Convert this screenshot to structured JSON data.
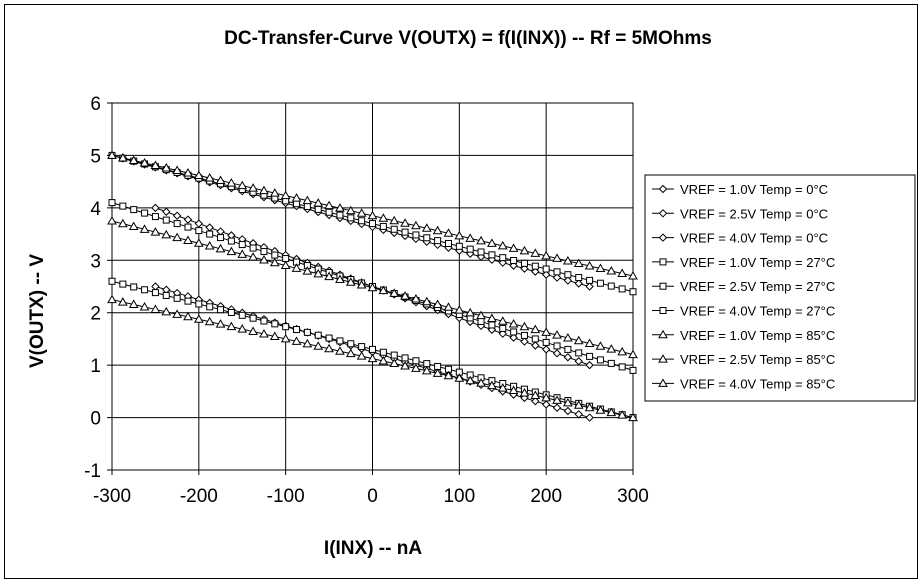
{
  "chart_data": {
    "type": "line",
    "title": "DC-Transfer-Curve V(OUTX) = f(I(INX)) -- Rf = 5MOhms",
    "xlabel": "I(INX) -- nA",
    "ylabel": "V(OUTX) -- V",
    "xlim": [
      -300,
      300
    ],
    "ylim": [
      -1,
      6
    ],
    "xticks": [
      "-300",
      "-200",
      "-100",
      "0",
      "100",
      "200",
      "300"
    ],
    "yticks": [
      "-1",
      "0",
      "1",
      "2",
      "3",
      "4",
      "5",
      "6"
    ],
    "grid": true,
    "legend_position": "right",
    "series": [
      {
        "name": "VREF = 1.0V Temp = 0°C",
        "marker": "diamond",
        "x": [
          -250,
          250
        ],
        "y": [
          2.5,
          -0.0
        ],
        "clip_low": 0,
        "clip_high": 5
      },
      {
        "name": "VREF = 2.5V Temp = 0°C",
        "marker": "diamond",
        "x": [
          -250,
          250
        ],
        "y": [
          4.0,
          1.0
        ],
        "clip_low": 0,
        "clip_high": 5
      },
      {
        "name": "VREF = 4.0V Temp = 0°C",
        "marker": "diamond",
        "x": [
          -300,
          250
        ],
        "y": [
          5.0,
          2.5
        ],
        "clip_low": 0,
        "clip_high": 5
      },
      {
        "name": "VREF = 1.0V Temp = 27°C",
        "marker": "square",
        "x": [
          -300,
          300
        ],
        "y": [
          2.6,
          0.0
        ],
        "clip_low": 0,
        "clip_high": 5
      },
      {
        "name": "VREF = 2.5V Temp = 27°C",
        "marker": "square",
        "x": [
          -300,
          300
        ],
        "y": [
          4.1,
          0.9
        ],
        "clip_low": 0,
        "clip_high": 5
      },
      {
        "name": "VREF = 4.0V Temp = 27°C",
        "marker": "square",
        "x": [
          -300,
          300
        ],
        "y": [
          5.0,
          2.4
        ],
        "clip_low": 0,
        "clip_high": 5
      },
      {
        "name": "VREF = 1.0V Temp = 85°C",
        "marker": "triangle",
        "x": [
          -300,
          300
        ],
        "y": [
          2.25,
          0.0
        ],
        "clip_low": 0,
        "clip_high": 5
      },
      {
        "name": "VREF = 2.5V Temp = 85°C",
        "marker": "triangle",
        "x": [
          -300,
          300
        ],
        "y": [
          3.75,
          1.2
        ],
        "clip_low": 0,
        "clip_high": 5
      },
      {
        "name": "VREF = 4.0V Temp = 85°C",
        "marker": "triangle",
        "x": [
          -300,
          300
        ],
        "y": [
          5.0,
          2.7
        ],
        "clip_low": 0,
        "clip_high": 5
      }
    ]
  }
}
